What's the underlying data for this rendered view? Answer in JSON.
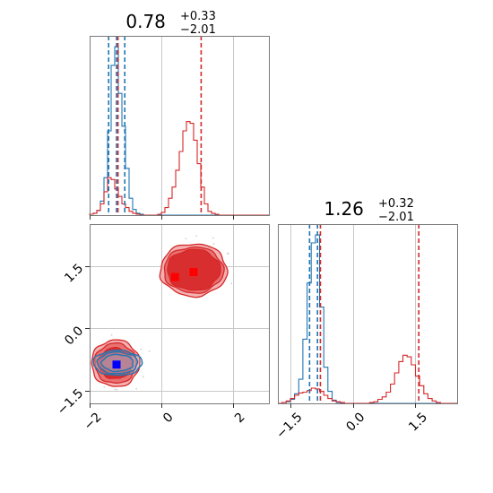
{
  "colors": {
    "red": "#d62728",
    "blue": "#1f77b4",
    "red_light": "#f2a3a3",
    "marker_red": "#ff0000",
    "marker_blue": "#0000ff",
    "grid": "#c8c8c8"
  },
  "chart_data": {
    "type": "corner",
    "grid": true,
    "titles": [
      {
        "value": "0.78",
        "upper": "+0.33",
        "lower": "−2.01"
      },
      {
        "value": "1.26",
        "upper": "+0.32",
        "lower": "−2.01"
      }
    ],
    "axes": {
      "param1": {
        "range": [
          -2,
          3
        ],
        "ticks": [
          -2,
          0,
          2
        ],
        "tick_labels": [
          "−2",
          "0",
          "2"
        ]
      },
      "param2": {
        "range": [
          -1.8,
          2.5
        ],
        "ticks": [
          -1.5,
          0.0,
          1.5
        ],
        "tick_labels": [
          "−1.5",
          "0.0",
          "1.5"
        ]
      }
    },
    "hist_param1": {
      "bins": [
        -2.0,
        -1.9,
        -1.8,
        -1.7,
        -1.6,
        -1.5,
        -1.4,
        -1.3,
        -1.2,
        -1.1,
        -1.0,
        -0.9,
        -0.8,
        -0.7,
        -0.6,
        -0.5,
        -0.4,
        -0.3,
        -0.2,
        -0.1,
        0.0,
        0.1,
        0.2,
        0.3,
        0.4,
        0.5,
        0.6,
        0.7,
        0.8,
        0.9,
        1.0,
        1.1,
        1.2,
        1.3,
        1.4,
        1.5,
        1.6,
        1.7,
        1.8,
        1.9,
        2.0,
        2.1,
        2.2,
        2.3,
        2.4,
        2.5,
        2.6,
        2.7,
        2.8,
        2.9,
        3.0
      ],
      "series": [
        {
          "color": "blue",
          "counts": [
            1,
            2,
            5,
            15,
            40,
            90,
            160,
            180,
            130,
            95,
            50,
            18,
            6,
            2,
            1,
            0,
            0,
            0,
            0,
            0,
            0,
            0,
            0,
            0,
            0,
            0,
            0,
            0,
            0,
            0,
            0,
            0,
            0,
            0,
            0,
            0,
            0,
            0,
            0,
            0,
            0,
            0,
            0,
            0,
            0,
            0,
            0,
            0,
            0,
            0
          ]
        },
        {
          "color": "red",
          "counts": [
            1,
            2,
            5,
            12,
            25,
            40,
            38,
            28,
            20,
            12,
            8,
            4,
            2,
            1,
            0,
            0,
            0,
            0,
            0,
            1,
            3,
            8,
            18,
            30,
            48,
            68,
            90,
            100,
            98,
            80,
            55,
            30,
            12,
            4,
            2,
            1,
            0,
            0,
            0,
            0,
            0,
            0,
            0,
            0,
            0,
            0,
            0,
            0,
            0,
            0
          ]
        }
      ],
      "quantile_lines": [
        {
          "color": "blue",
          "values": [
            -1.47,
            -1.25,
            -1.02
          ]
        },
        {
          "color": "red",
          "values": [
            -1.21,
            1.11
          ]
        }
      ]
    },
    "hist_param2": {
      "bins": [
        -1.8,
        -1.7,
        -1.6,
        -1.5,
        -1.4,
        -1.3,
        -1.2,
        -1.1,
        -1.0,
        -0.9,
        -0.8,
        -0.7,
        -0.6,
        -0.5,
        -0.4,
        -0.3,
        -0.2,
        -0.1,
        0.0,
        0.1,
        0.2,
        0.3,
        0.4,
        0.5,
        0.6,
        0.7,
        0.8,
        0.9,
        1.0,
        1.1,
        1.2,
        1.3,
        1.4,
        1.5,
        1.6,
        1.7,
        1.8,
        1.9,
        2.0,
        2.1,
        2.2,
        2.3,
        2.4,
        2.5
      ],
      "series": [
        {
          "color": "blue",
          "counts": [
            0,
            1,
            2,
            5,
            12,
            30,
            80,
            150,
            200,
            210,
            120,
            45,
            15,
            4,
            1,
            0,
            0,
            0,
            0,
            0,
            0,
            0,
            0,
            0,
            0,
            0,
            0,
            0,
            0,
            0,
            0,
            0,
            0,
            0,
            0,
            0,
            0,
            0,
            0,
            0,
            0,
            0,
            0
          ]
        },
        {
          "color": "red",
          "counts": [
            0,
            1,
            3,
            6,
            10,
            13,
            14,
            16,
            19,
            18,
            15,
            10,
            6,
            3,
            2,
            1,
            0,
            0,
            0,
            0,
            0,
            0,
            1,
            2,
            5,
            8,
            14,
            24,
            38,
            52,
            60,
            58,
            48,
            34,
            22,
            12,
            6,
            3,
            1,
            0,
            0,
            0,
            0
          ]
        }
      ],
      "quantile_lines": [
        {
          "color": "blue",
          "values": [
            -1.04,
            -0.85
          ]
        },
        {
          "color": "red",
          "values": [
            -0.78,
            1.58
          ]
        }
      ]
    },
    "scatter_2d": {
      "markers": [
        {
          "color": "marker_red",
          "x": 0.9,
          "y": 1.35
        },
        {
          "color": "marker_red",
          "x": 0.38,
          "y": 1.23
        },
        {
          "color": "marker_blue",
          "x": -1.25,
          "y": -0.87
        }
      ],
      "red_clusters": [
        {
          "center": [
            0.9,
            1.4
          ],
          "levels": [
            [
              0.74,
              0.49
            ],
            [
              0.83,
              0.55
            ],
            [
              0.93,
              0.63
            ]
          ]
        },
        {
          "center": [
            -1.28,
            -0.84
          ],
          "levels": [
            [
              0.47,
              0.37
            ],
            [
              0.58,
              0.48
            ],
            [
              0.67,
              0.56
            ]
          ]
        }
      ],
      "blue_cluster": {
        "center": [
          -1.22,
          -0.83
        ],
        "levels": [
          [
            0.44,
            0.2
          ],
          [
            0.56,
            0.26
          ],
          [
            0.68,
            0.3
          ]
        ]
      }
    }
  }
}
